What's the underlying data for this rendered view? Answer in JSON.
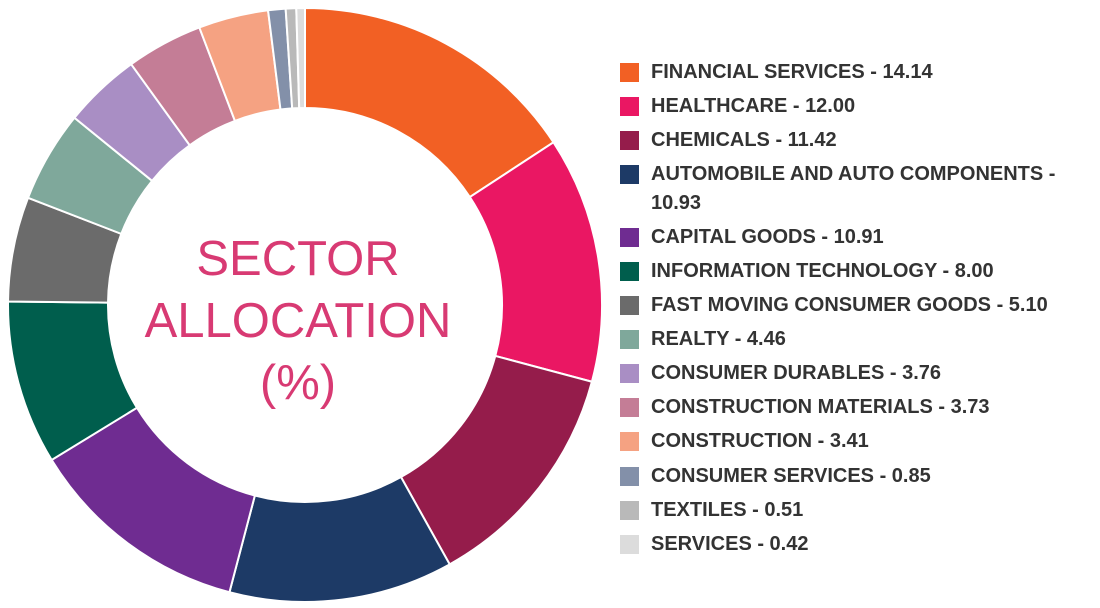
{
  "chart_data": {
    "type": "pie",
    "title_lines": [
      "SECTOR",
      "ALLOCATION",
      "(%)"
    ],
    "unit": "%",
    "categories": [
      "FINANCIAL SERVICES",
      "HEALTHCARE",
      "CHEMICALS",
      "AUTOMOBILE AND AUTO COMPONENTS",
      "CAPITAL GOODS",
      "INFORMATION TECHNOLOGY",
      "FAST MOVING CONSUMER GOODS",
      "REALTY",
      "CONSUMER DURABLES",
      "CONSTRUCTION MATERIALS",
      "CONSTRUCTION",
      "CONSUMER SERVICES",
      "TEXTILES",
      "SERVICES"
    ],
    "values": [
      14.14,
      12.0,
      11.42,
      10.93,
      10.91,
      8.0,
      5.1,
      4.46,
      3.76,
      3.73,
      3.41,
      0.85,
      0.51,
      0.42
    ],
    "legend_labels": [
      "FINANCIAL SERVICES - 14.14",
      "HEALTHCARE - 12.00",
      "CHEMICALS - 11.42",
      "AUTOMOBILE AND AUTO COMPONENTS - 10.93",
      "CAPITAL GOODS - 10.91",
      "INFORMATION TECHNOLOGY - 8.00",
      "FAST MOVING CONSUMER GOODS - 5.10",
      "REALTY - 4.46",
      "CONSUMER DURABLES - 3.76",
      "CONSTRUCTION MATERIALS - 3.73",
      "CONSTRUCTION - 3.41",
      "CONSUMER SERVICES - 0.85",
      "TEXTILES - 0.51",
      "SERVICES - 0.42"
    ],
    "colors": [
      "#f26024",
      "#ea1763",
      "#951c4b",
      "#1d3a66",
      "#6f2c91",
      "#005e4d",
      "#6b6b6b",
      "#7fa89b",
      "#a98ec4",
      "#c47d96",
      "#f5a282",
      "#8390a9",
      "#b9b9b9",
      "#dcdcdc"
    ],
    "legend_position": "right",
    "title_color": "#d83a73"
  }
}
